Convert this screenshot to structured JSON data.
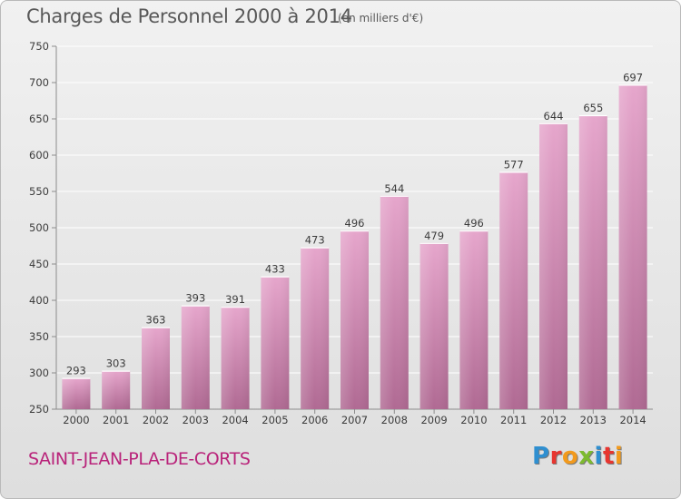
{
  "header": {
    "title": "Charges de Personnel 2000 à 2014",
    "subtitle": "(en milliers d'€)"
  },
  "footer": {
    "commune": "SAINT-JEAN-PLA-DE-CORTS",
    "brand": "Proxiti",
    "brand_colors": [
      "#2f8fd0",
      "#e8352f",
      "#f29a1d",
      "#7dba2f",
      "#2f8fd0",
      "#e8352f",
      "#f29a1d"
    ]
  },
  "chart_data": {
    "type": "bar",
    "title": "Charges de Personnel 2000 à 2014",
    "subtitle": "(en milliers d'€)",
    "categories": [
      "2000",
      "2001",
      "2002",
      "2003",
      "2004",
      "2005",
      "2006",
      "2007",
      "2008",
      "2009",
      "2010",
      "2011",
      "2012",
      "2013",
      "2014"
    ],
    "values": [
      293,
      303,
      363,
      393,
      391,
      433,
      473,
      496,
      544,
      479,
      496,
      577,
      644,
      655,
      697
    ],
    "ylim": [
      250,
      750
    ],
    "yticks": [
      250,
      300,
      350,
      400,
      450,
      500,
      550,
      600,
      650,
      700,
      750
    ],
    "grid": true,
    "bar_color_top": "#e6a6cc",
    "bar_color_bottom": "#b06a93"
  }
}
